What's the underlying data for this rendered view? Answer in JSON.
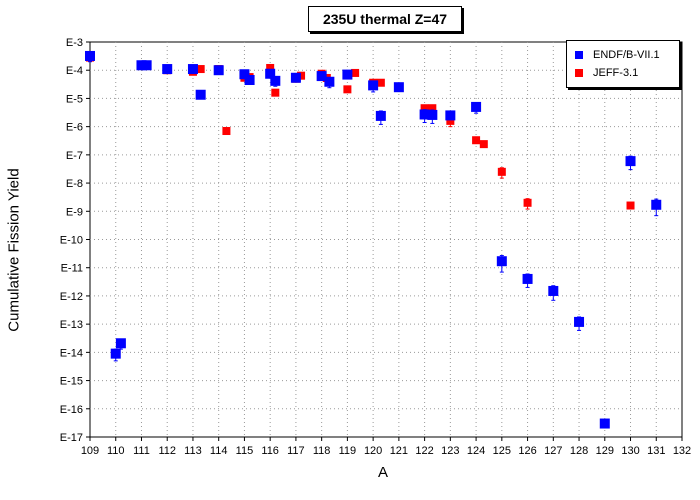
{
  "chart_data": {
    "type": "scatter",
    "title": "235U thermal Z=47",
    "xlabel": "A",
    "ylabel": "Cumulative Fission Yield",
    "xlim": [
      109,
      132
    ],
    "y_scale": "log",
    "ylim_exponent": [
      -17,
      -3
    ],
    "x_ticks": [
      "109",
      "110",
      "111",
      "112",
      "113",
      "114",
      "115",
      "116",
      "117",
      "118",
      "119",
      "120",
      "121",
      "122",
      "123",
      "124",
      "125",
      "126",
      "127",
      "128",
      "129",
      "130",
      "131",
      "132"
    ],
    "y_ticks": [
      "E-3",
      "E-4",
      "E-5",
      "E-6",
      "E-7",
      "E-8",
      "E-9",
      "E-10",
      "E-11",
      "E-12",
      "E-13",
      "E-14",
      "E-15",
      "E-16",
      "E-17"
    ],
    "grid": true,
    "legend_position": "top-right",
    "series": [
      {
        "name": "ENDF/B-VII.1",
        "color": "#0000ff",
        "marker": "square",
        "points": [
          {
            "x": 109.0,
            "y": 0.00032,
            "err_up": 0.00012,
            "err_down": 0.00012
          },
          {
            "x": 110.0,
            "y": 9e-15,
            "err_up": 4e-15,
            "err_down": 4e-15
          },
          {
            "x": 110.2,
            "y": 2.1e-14,
            "err_up": 8e-15,
            "err_down": 8e-15
          },
          {
            "x": 111.0,
            "y": 0.00015,
            "err_up": 2e-05,
            "err_down": 2e-05
          },
          {
            "x": 111.2,
            "y": 0.00015
          },
          {
            "x": 112.0,
            "y": 0.00011
          },
          {
            "x": 113.0,
            "y": 0.00011
          },
          {
            "x": 113.3,
            "y": 1.35e-05
          },
          {
            "x": 114.0,
            "y": 0.0001
          },
          {
            "x": 115.0,
            "y": 7.2e-05
          },
          {
            "x": 115.2,
            "y": 4.5e-05
          },
          {
            "x": 116.0,
            "y": 7.5e-05
          },
          {
            "x": 116.2,
            "y": 4.2e-05,
            "err_up": 1.5e-05,
            "err_down": 1.5e-05
          },
          {
            "x": 117.0,
            "y": 5.4e-05
          },
          {
            "x": 118.0,
            "y": 6.2e-05
          },
          {
            "x": 118.3,
            "y": 3.9e-05,
            "err_up": 1.5e-05,
            "err_down": 1.5e-05
          },
          {
            "x": 119.0,
            "y": 7e-05
          },
          {
            "x": 120.0,
            "y": 2.9e-05,
            "err_up": 1.2e-05,
            "err_down": 1.2e-05
          },
          {
            "x": 120.3,
            "y": 2.4e-06,
            "err_up": 1.2e-06,
            "err_down": 1.2e-06
          },
          {
            "x": 121.0,
            "y": 2.5e-05
          },
          {
            "x": 122.0,
            "y": 2.7e-06,
            "err_up": 1.3e-06,
            "err_down": 1.3e-06
          },
          {
            "x": 122.3,
            "y": 2.6e-06,
            "err_up": 1.3e-06,
            "err_down": 1.3e-06
          },
          {
            "x": 123.0,
            "y": 2.5e-06
          },
          {
            "x": 124.0,
            "y": 5e-06,
            "err_up": 2e-06,
            "err_down": 2e-06
          },
          {
            "x": 125.0,
            "y": 1.7e-11,
            "err_up": 1e-11,
            "err_down": 1e-11
          },
          {
            "x": 126.0,
            "y": 4e-12,
            "err_up": 2e-12,
            "err_down": 2e-12
          },
          {
            "x": 127.0,
            "y": 1.5e-12,
            "err_up": 8e-13,
            "err_down": 8e-13
          },
          {
            "x": 128.0,
            "y": 1.2e-13,
            "err_up": 6e-14,
            "err_down": 6e-14
          },
          {
            "x": 129.0,
            "y": 3e-17
          },
          {
            "x": 130.0,
            "y": 6e-08,
            "err_up": 3e-08,
            "err_down": 3e-08
          },
          {
            "x": 131.0,
            "y": 1.7e-09,
            "err_up": 1e-09,
            "err_down": 1e-09
          }
        ]
      },
      {
        "name": "JEFF-3.1",
        "color": "#ff0000",
        "marker": "square",
        "points": [
          {
            "x": 109.0,
            "y": 0.00028
          },
          {
            "x": 111.0,
            "y": 0.00015
          },
          {
            "x": 111.2,
            "y": 0.00015
          },
          {
            "x": 112.0,
            "y": 0.0001
          },
          {
            "x": 113.0,
            "y": 8.8e-05
          },
          {
            "x": 113.3,
            "y": 0.00011
          },
          {
            "x": 114.0,
            "y": 0.00011
          },
          {
            "x": 114.3,
            "y": 7e-07
          },
          {
            "x": 115.0,
            "y": 5.4e-05
          },
          {
            "x": 115.2,
            "y": 5.7e-05
          },
          {
            "x": 116.0,
            "y": 0.00012
          },
          {
            "x": 116.2,
            "y": 1.6e-05
          },
          {
            "x": 117.0,
            "y": 5e-05
          },
          {
            "x": 117.2,
            "y": 6.4e-05
          },
          {
            "x": 118.0,
            "y": 7.5e-05
          },
          {
            "x": 118.2,
            "y": 5.3e-05
          },
          {
            "x": 119.0,
            "y": 2.1e-05
          },
          {
            "x": 119.3,
            "y": 8e-05
          },
          {
            "x": 120.0,
            "y": 3.6e-05
          },
          {
            "x": 120.3,
            "y": 3.6e-05
          },
          {
            "x": 121.0,
            "y": 2.4e-05
          },
          {
            "x": 122.0,
            "y": 4.5e-06
          },
          {
            "x": 122.3,
            "y": 4.5e-06
          },
          {
            "x": 123.0,
            "y": 1.6e-06,
            "err_up": 6e-07,
            "err_down": 6e-07
          },
          {
            "x": 124.0,
            "y": 3.3e-07
          },
          {
            "x": 124.3,
            "y": 2.4e-07
          },
          {
            "x": 125.0,
            "y": 2.5e-08,
            "err_up": 1e-08,
            "err_down": 1e-08
          },
          {
            "x": 126.0,
            "y": 2e-09,
            "err_up": 8e-10,
            "err_down": 8e-10
          },
          {
            "x": 130.0,
            "y": 1.6e-09
          }
        ]
      }
    ]
  }
}
